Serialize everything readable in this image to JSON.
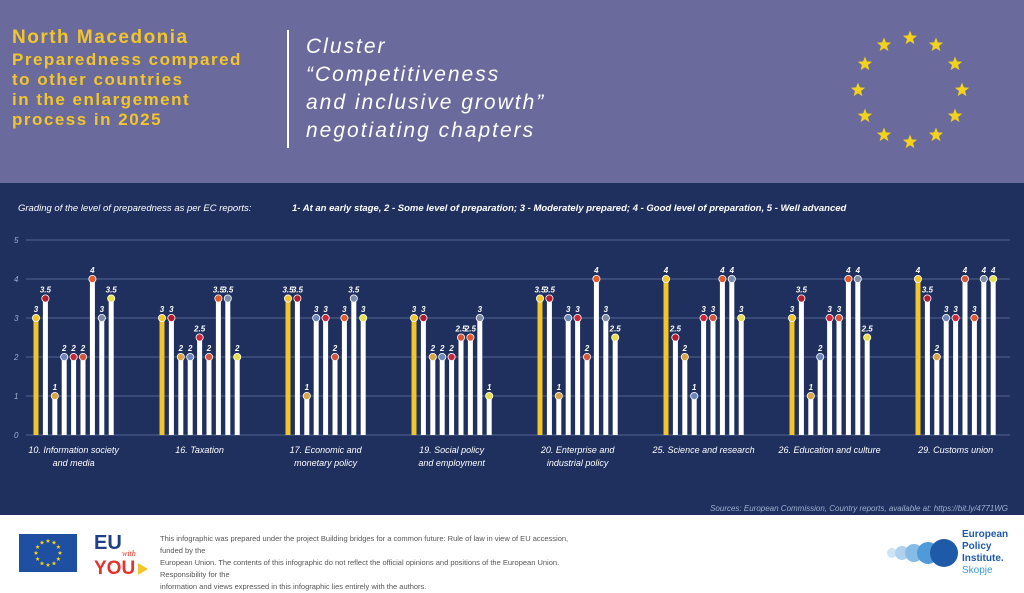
{
  "header": {
    "country": "North Macedonia",
    "subtitle_lines": [
      "Preparedness compared",
      "to other countries",
      "in the enlargement",
      "process in 2025"
    ],
    "cluster_lines": [
      "Cluster",
      "“Competitiveness",
      "and inclusive growth”",
      "negotiating chapters"
    ]
  },
  "legend": {
    "intro": "Grading of the level of preparedness as per EC reports:",
    "grades": "1- At an early stage,   2 - Some level of preparation;   3 - Moderately prepared;   4 - Good level of preparation,   5 - Well advanced"
  },
  "colors": {
    "header_bg": "#6b6a9c",
    "title_yellow": "#f2c62a",
    "chart_bg": "#1f2f5e",
    "bar_white": "#ffffff",
    "bar_highlight": "#f2c62a",
    "eu_blue": "#1f4fa0"
  },
  "chart_data": {
    "type": "bar",
    "title": "Grading of the level of preparedness as per EC reports",
    "ylim": [
      0,
      5
    ],
    "y_ticks": [
      "0",
      "1",
      "2",
      "3",
      "4",
      "5"
    ],
    "grid": true,
    "highlight_series": "North Macedonia (first bar in each group, yellow)",
    "groups": [
      {
        "label_lines": [
          "10. Information society",
          "and media"
        ],
        "values": [
          3,
          3.5,
          1,
          2,
          2,
          2,
          4,
          3,
          3.5
        ]
      },
      {
        "label_lines": [
          "16. Taxation"
        ],
        "values": [
          3,
          3,
          2,
          2,
          2.5,
          2,
          3.5,
          3.5,
          2
        ]
      },
      {
        "label_lines": [
          "17. Economic and",
          "monetary policy"
        ],
        "values": [
          3.5,
          3.5,
          1,
          3,
          3,
          2,
          3,
          3.5,
          3
        ]
      },
      {
        "label_lines": [
          "19. Social policy",
          "and employment"
        ],
        "values": [
          3,
          3,
          2,
          2,
          2,
          2.5,
          2.5,
          3,
          1
        ]
      },
      {
        "label_lines": [
          "20. Enterprise and",
          "industrial policy"
        ],
        "values": [
          3.5,
          3.5,
          1,
          3,
          3,
          2,
          4,
          3,
          2.5
        ]
      },
      {
        "label_lines": [
          "25. Science and research"
        ],
        "values": [
          4,
          2.5,
          2,
          1,
          3,
          3,
          4,
          4,
          3
        ]
      },
      {
        "label_lines": [
          "26. Education and culture"
        ],
        "values": [
          3,
          3.5,
          1,
          2,
          3,
          3,
          4,
          4,
          2.5
        ]
      },
      {
        "label_lines": [
          "29. Customs union"
        ],
        "values": [
          4,
          3.5,
          2,
          3,
          3,
          4,
          3,
          4,
          4
        ]
      }
    ]
  },
  "sources": "Sources: European Commission, Country reports, available at: https://bit.ly/4771WG",
  "footer": {
    "disclaimer_lines": [
      "This infographic was prepared under the project Building bridges for a common future: Rule of law in view of EU accession, funded by the",
      "European Union. The contents of this infographic do not reflect the official opinions and positions of the European Union. Responsibility for the",
      "information and views expressed in this infographic lies entirely with the authors."
    ],
    "eu_with_you": [
      "EU",
      "with",
      "YOU"
    ],
    "epi_lines": [
      "European",
      "Policy",
      "Institute."
    ],
    "epi_city": "Skopje"
  }
}
